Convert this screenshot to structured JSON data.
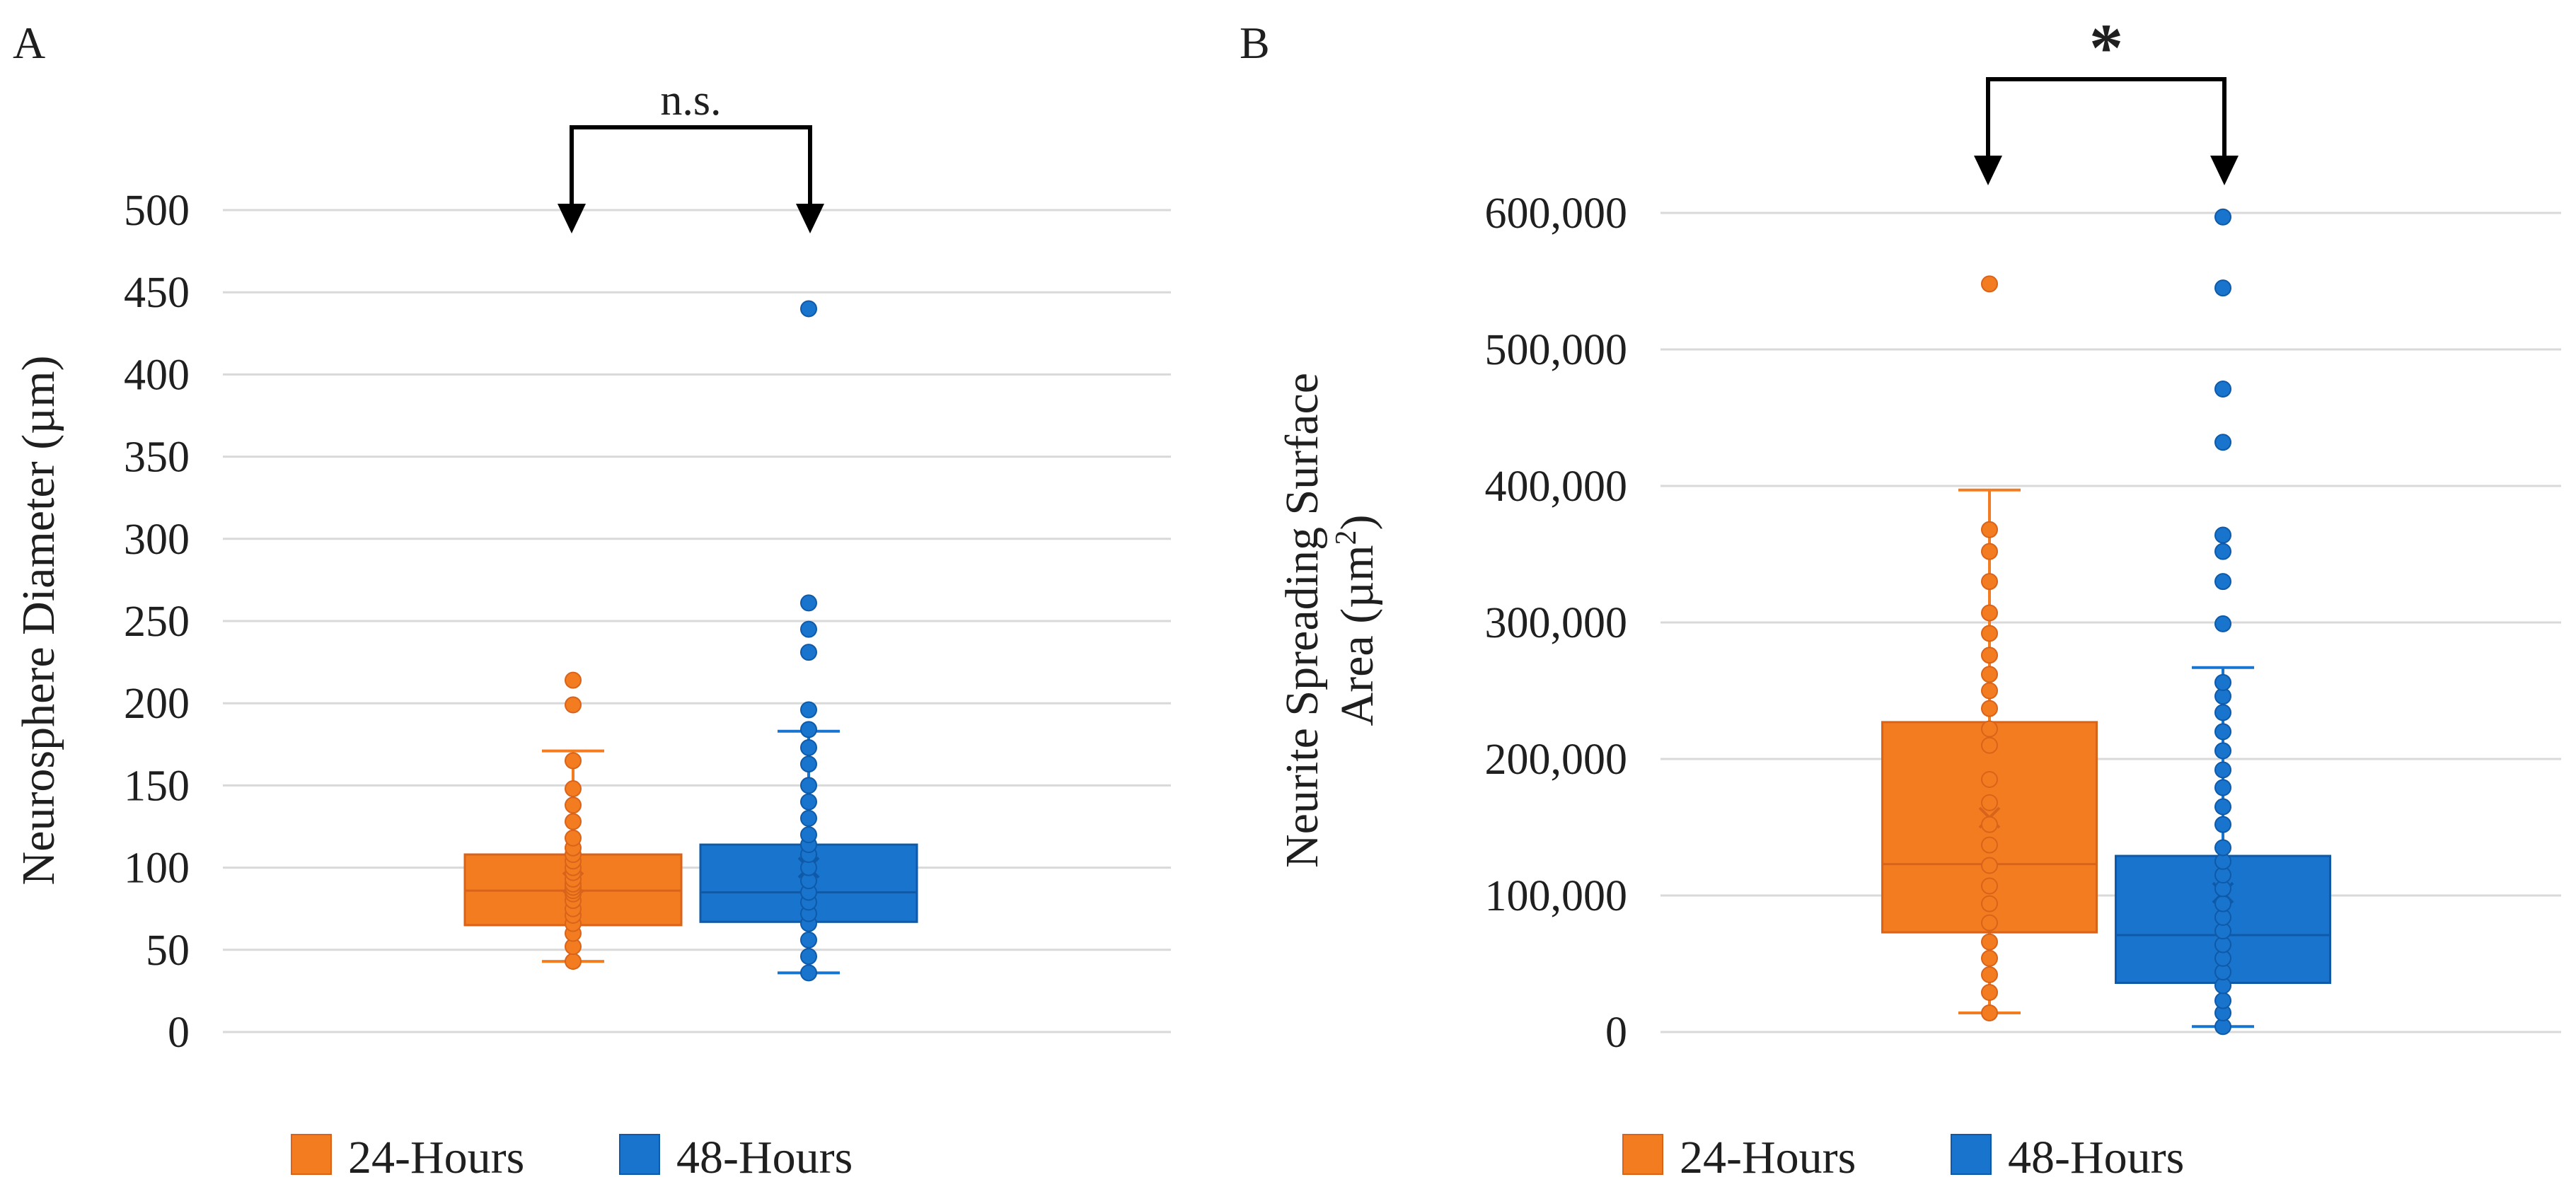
{
  "colors": {
    "h24": "#f47c20",
    "h24_edge": "#d8631a",
    "h48": "#1874cd",
    "h48_edge": "#0f5aa8",
    "grid": "#d9d9d9",
    "text": "#1f1f1f",
    "bracket": "#000000"
  },
  "legend": {
    "placement": "bottom"
  },
  "chart_data": [
    {
      "type": "box",
      "panel_label": "A",
      "ylabel": "Neurosphere Diameter (µm)",
      "ylim": [
        0,
        500
      ],
      "yticks": [
        0,
        50,
        100,
        150,
        200,
        250,
        300,
        350,
        400,
        450,
        500
      ],
      "ytick_labels": [
        "0",
        "50",
        "100",
        "150",
        "200",
        "250",
        "300",
        "350",
        "400",
        "450",
        "500"
      ],
      "grid": true,
      "significance": "n.s.",
      "series": [
        {
          "name": "24-Hours",
          "whisker_low": 43,
          "q1": 65,
          "median": 86,
          "mean": 91,
          "q3": 108,
          "whisker_high": 171,
          "points": [
            43,
            52,
            60,
            66,
            71,
            75,
            80,
            84,
            86,
            88,
            90,
            93,
            97,
            100,
            104,
            108,
            112,
            118,
            128,
            138,
            148,
            165,
            199,
            214
          ]
        },
        {
          "name": "48-Hours",
          "whisker_low": 36,
          "q1": 67,
          "median": 85,
          "mean": 100,
          "q3": 114,
          "whisker_high": 183,
          "points": [
            36,
            46,
            56,
            66,
            72,
            79,
            85,
            92,
            100,
            108,
            114,
            120,
            130,
            140,
            150,
            163,
            173,
            184,
            196,
            231,
            245,
            261,
            440
          ]
        }
      ]
    },
    {
      "type": "box",
      "panel_label": "B",
      "ylabel_line1": "Neurite Spreading Surface",
      "ylabel_line2_pre": "Area (µm",
      "ylabel_line2_sup": "2",
      "ylabel_line2_post": ")",
      "ylim": [
        0,
        600000
      ],
      "yticks": [
        0,
        100000,
        200000,
        300000,
        400000,
        500000,
        600000
      ],
      "ytick_labels": [
        "0",
        "100,000",
        "200,000",
        "300,000",
        "400,000",
        "500,000",
        "600,000"
      ],
      "grid": true,
      "significance": "*",
      "series": [
        {
          "name": "24-Hours",
          "whisker_low": 14000,
          "q1": 73000,
          "median": 123000,
          "mean": 157000,
          "q3": 227000,
          "whisker_high": 397000,
          "points": [
            14000,
            29000,
            42000,
            54000,
            66000,
            80000,
            94000,
            107000,
            122000,
            137000,
            152000,
            168000,
            185000,
            210000,
            222000,
            237000,
            250000,
            262000,
            276000,
            292000,
            307000,
            330000,
            352000,
            368000,
            548000
          ]
        },
        {
          "name": "48-Hours",
          "whisker_low": 4000,
          "q1": 36000,
          "median": 71000,
          "mean": 102000,
          "q3": 129000,
          "whisker_high": 267000,
          "points": [
            4000,
            14000,
            23000,
            34000,
            44000,
            54000,
            64000,
            74000,
            84000,
            94000,
            105000,
            115000,
            125000,
            135000,
            152000,
            165000,
            179000,
            192000,
            206000,
            220000,
            234000,
            246000,
            256000,
            299000,
            330000,
            352000,
            364000,
            432000,
            471000,
            545000,
            597000
          ]
        }
      ]
    }
  ]
}
